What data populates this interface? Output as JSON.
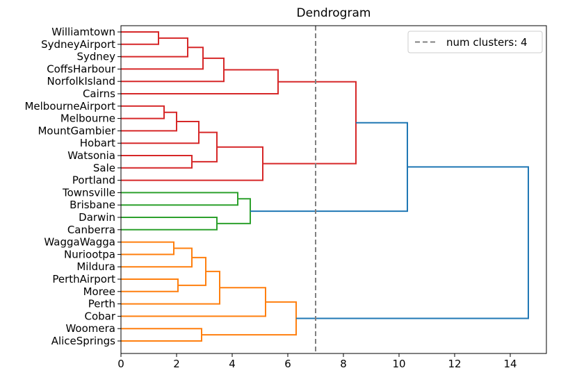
{
  "chart_data": {
    "type": "dendrogram",
    "title": "Dendrogram",
    "xlabel": "",
    "ylabel": "",
    "xlim": [
      0,
      15.3
    ],
    "xticks": [
      0,
      2,
      4,
      6,
      8,
      10,
      12,
      14
    ],
    "grid": false,
    "legend": {
      "placement": "top-right",
      "entries": [
        "num clusters: 4"
      ]
    },
    "leaves": [
      "Williamtown",
      "SydneyAirport",
      "Sydney",
      "CoffsHarbour",
      "NorfolkIsland",
      "Cairns",
      "MelbourneAirport",
      "Melbourne",
      "MountGambier",
      "Hobart",
      "Watsonia",
      "Sale",
      "Portland",
      "Townsville",
      "Brisbane",
      "Darwin",
      "Canberra",
      "WaggaWagga",
      "Nuriootpa",
      "Mildura",
      "PerthAirport",
      "Moree",
      "Perth",
      "Cobar",
      "Woomera",
      "AliceSprings"
    ],
    "threshold": {
      "value": 7.0,
      "color": "#808080",
      "style": "dashed"
    },
    "merges": [
      {
        "a": "Williamtown",
        "b": "SydneyAirport",
        "height": 1.35,
        "id": "n1",
        "color": "#d62728"
      },
      {
        "a": "n1",
        "b": "Sydney",
        "height": 2.4,
        "id": "n2",
        "color": "#d62728"
      },
      {
        "a": "n2",
        "b": "CoffsHarbour",
        "height": 2.95,
        "id": "n3",
        "color": "#d62728"
      },
      {
        "a": "n3",
        "b": "NorfolkIsland",
        "height": 3.7,
        "id": "n4",
        "color": "#d62728"
      },
      {
        "a": "n4",
        "b": "Cairns",
        "height": 5.65,
        "id": "n5",
        "color": "#d62728"
      },
      {
        "a": "MelbourneAirport",
        "b": "Melbourne",
        "height": 1.55,
        "id": "n6",
        "color": "#d62728"
      },
      {
        "a": "n6",
        "b": "MountGambier",
        "height": 2.0,
        "id": "n7",
        "color": "#d62728"
      },
      {
        "a": "n7",
        "b": "Hobart",
        "height": 2.8,
        "id": "n8",
        "color": "#d62728"
      },
      {
        "a": "Watsonia",
        "b": "Sale",
        "height": 2.55,
        "id": "n9",
        "color": "#d62728"
      },
      {
        "a": "n8",
        "b": "n9",
        "height": 3.45,
        "id": "n10",
        "color": "#d62728"
      },
      {
        "a": "n10",
        "b": "Portland",
        "height": 5.1,
        "id": "n11",
        "color": "#d62728"
      },
      {
        "a": "n5",
        "b": "n11",
        "height": 8.45,
        "id": "n12",
        "color": "#d62728"
      },
      {
        "a": "Townsville",
        "b": "Brisbane",
        "height": 4.2,
        "id": "n13",
        "color": "#2ca02c"
      },
      {
        "a": "Darwin",
        "b": "Canberra",
        "height": 3.45,
        "id": "n14",
        "color": "#2ca02c"
      },
      {
        "a": "n13",
        "b": "n14",
        "height": 4.65,
        "id": "n15",
        "color": "#2ca02c"
      },
      {
        "a": "n12",
        "b": "n15",
        "height": 10.3,
        "id": "n16",
        "color": "#1f77b4"
      },
      {
        "a": "WaggaWagga",
        "b": "Nuriootpa",
        "height": 1.9,
        "id": "n17",
        "color": "#ff7f0e"
      },
      {
        "a": "n17",
        "b": "Mildura",
        "height": 2.55,
        "id": "n18",
        "color": "#ff7f0e"
      },
      {
        "a": "PerthAirport",
        "b": "Moree",
        "height": 2.05,
        "id": "n19",
        "color": "#ff7f0e"
      },
      {
        "a": "n18",
        "b": "n19",
        "height": 3.05,
        "id": "n20",
        "color": "#ff7f0e"
      },
      {
        "a": "n20",
        "b": "Perth",
        "height": 3.55,
        "id": "n21",
        "color": "#ff7f0e"
      },
      {
        "a": "n21",
        "b": "Cobar",
        "height": 5.2,
        "id": "n22",
        "color": "#ff7f0e"
      },
      {
        "a": "Woomera",
        "b": "AliceSprings",
        "height": 2.9,
        "id": "n23",
        "color": "#ff7f0e"
      },
      {
        "a": "n22",
        "b": "n23",
        "height": 6.3,
        "id": "n24",
        "color": "#ff7f0e"
      },
      {
        "a": "n16",
        "b": "n24",
        "height": 14.65,
        "id": "n25",
        "color": "#1f77b4"
      }
    ]
  }
}
